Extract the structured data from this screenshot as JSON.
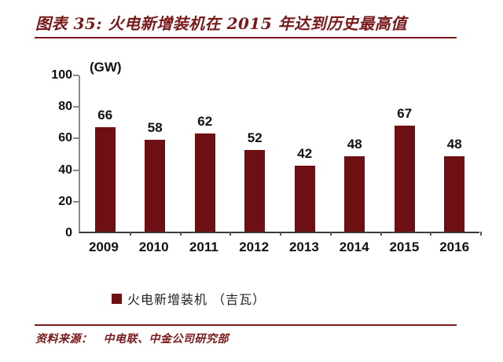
{
  "header": {
    "title": "图表 35: 火电新增装机在 2015 年达到历史最高值"
  },
  "chart_data": {
    "type": "bar",
    "title": "图表 35: 火电新增装机在 2015 年达到历史最高值",
    "unit_label": "(GW)",
    "categories": [
      "2009",
      "2010",
      "2011",
      "2012",
      "2013",
      "2014",
      "2015",
      "2016"
    ],
    "values": [
      66,
      58,
      62,
      52,
      42,
      48,
      67,
      48
    ],
    "y_ticks": [
      0,
      20,
      40,
      60,
      80,
      100
    ],
    "ylim": [
      0,
      100
    ],
    "xlabel": "",
    "ylabel": "(GW)",
    "grid": false,
    "legend": "火电新增装机 （吉瓦）",
    "legend_position": "bottom-center",
    "bar_color": "#6e1013"
  },
  "footer": {
    "source_label": "资料来源：",
    "source_text": "中电联、中金公司研究部"
  },
  "colors": {
    "accent": "#7a191b",
    "bar": "#6e1013",
    "y_axis": "#8a8a8a",
    "x_axis": "#3a3a3a",
    "text": "#111111"
  }
}
